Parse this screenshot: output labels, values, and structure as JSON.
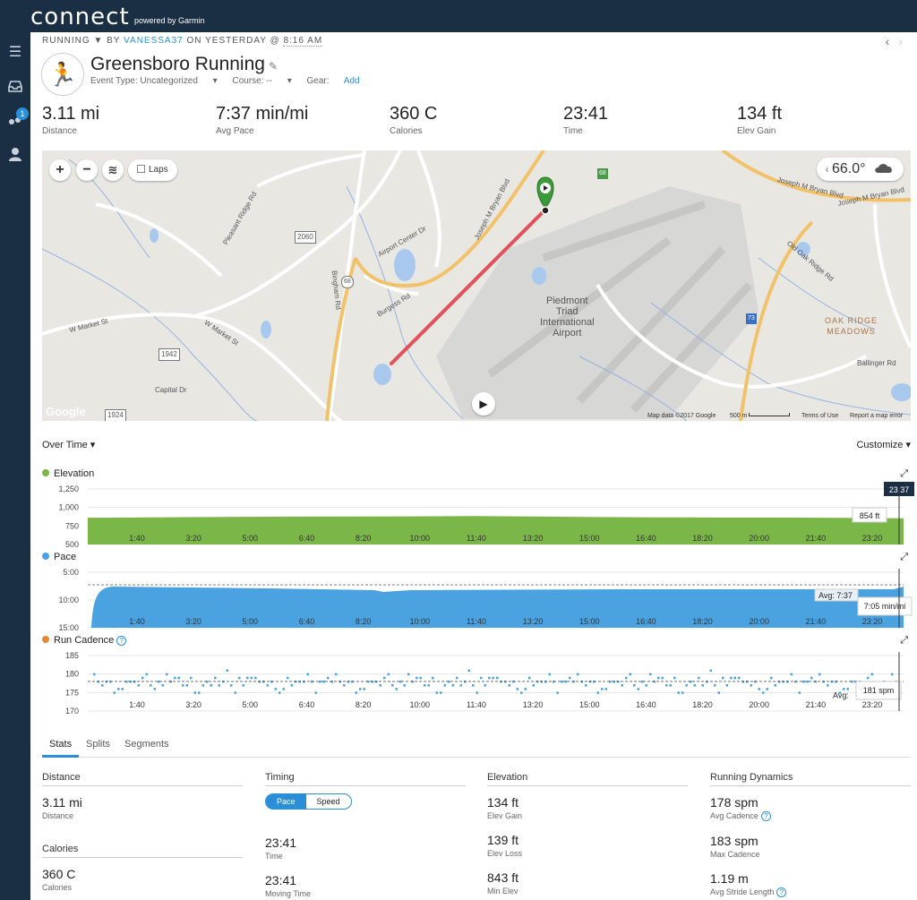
{
  "app": {
    "logo": "connect",
    "logo_sub": "powered by Garmin"
  },
  "sidebar": {
    "notification_count": "1"
  },
  "breadcrumb": {
    "activity_type": "RUNNING",
    "by": "BY",
    "user": "VANESSA37",
    "on": "ON YESTERDAY @",
    "time": "8:16 AM"
  },
  "activity": {
    "title": "Greensboro Running",
    "event_type": "Event Type: Uncategorized",
    "course": "Course: --",
    "gear_label": "Gear:",
    "gear_add": "Add"
  },
  "summary": [
    {
      "value": "3.11 mi",
      "label": "Distance"
    },
    {
      "value": "7:37 min/mi",
      "label": "Avg Pace"
    },
    {
      "value": "360 C",
      "label": "Calories"
    },
    {
      "value": "23:41",
      "label": "Time"
    },
    {
      "value": "134 ft",
      "label": "Elev Gain"
    }
  ],
  "map": {
    "zoom_in": "+",
    "zoom_out": "−",
    "laps": "Laps",
    "temperature": "66.0°",
    "labels": {
      "airport": "Piedmont\nTriad\nInternational\nAirport",
      "oak_ridge": "OAK RIDGE\nMEADOWS",
      "joseph1": "Joseph M Bryan Blvd",
      "joseph2": "Joseph M Bryan Blvd",
      "joseph3": "Joseph M Bryan Blvd",
      "w_market": "W Market St",
      "w_market2": "W Market St",
      "burgess": "Burgess Rd",
      "pleasant": "Pleasant Ridge Rd",
      "capital": "Capital Dr",
      "old_oak": "Old Oak Ridge Rd",
      "ballinger": "Ballinger Rd",
      "bingham": "Bingham Rd",
      "airport_center": "Airport Center Dr",
      "r2060": "2060",
      "r1942": "1942",
      "r1924": "1924",
      "r68": "68",
      "r68b": "68",
      "r73": "73"
    },
    "attribution": "Map data ©2017 Google",
    "scale": "500 m",
    "terms": "Terms of Use",
    "report": "Report a map error",
    "google": "Google"
  },
  "charts_header": {
    "over_time": "Over Time",
    "customize": "Customize"
  },
  "chart_data": [
    {
      "type": "area",
      "title": "Elevation",
      "x": [
        "1:40",
        "3:20",
        "5:00",
        "6:40",
        "8:20",
        "10:00",
        "11:40",
        "13:20",
        "15:00",
        "16:40",
        "18:20",
        "20:00",
        "21:40",
        "23:20"
      ],
      "yticks": [
        "1,250",
        "1,000",
        "750",
        "500"
      ],
      "ylim": [
        500,
        1250
      ],
      "values": [
        862,
        868,
        872,
        876,
        878,
        880,
        884,
        878,
        870,
        866,
        864,
        864,
        860,
        854
      ],
      "tooltip": "854 ft",
      "cursor_time": "23:37",
      "color": "#7ab648"
    },
    {
      "type": "area",
      "title": "Pace",
      "x": [
        "1:40",
        "3:20",
        "5:00",
        "6:40",
        "8:20",
        "10:00",
        "11:40",
        "13:20",
        "15:00",
        "16:40",
        "18:20",
        "20:00",
        "21:40",
        "23:20"
      ],
      "yticks": [
        "5:00",
        "10:00",
        "15:00"
      ],
      "avg_label": "Avg: 7:37",
      "tooltip": "7:05 min/mi",
      "color": "#4aa3e0"
    },
    {
      "type": "scatter",
      "title": "Run Cadence",
      "x": [
        "1:40",
        "3:20",
        "5:00",
        "6:40",
        "8:20",
        "10:00",
        "11:40",
        "13:20",
        "15:00",
        "16:40",
        "18:20",
        "20:00",
        "21:40",
        "23:20"
      ],
      "yticks": [
        "185",
        "180",
        "175",
        "170"
      ],
      "ylim": [
        170,
        185
      ],
      "avg_label": "Avg:",
      "tooltip": "181 spm",
      "color": "#4aa3e0"
    }
  ],
  "tabs": [
    "Stats",
    "Splits",
    "Segments"
  ],
  "stats": {
    "distance": {
      "head": "Distance",
      "items": [
        {
          "value": "3.11 mi",
          "label": "Distance"
        }
      ]
    },
    "calories": {
      "head": "Calories",
      "items": [
        {
          "value": "360 C",
          "label": "Calories"
        }
      ]
    },
    "timing": {
      "head": "Timing",
      "toggle_on": "Pace",
      "toggle_off": "Speed",
      "items": [
        {
          "value": "23:41",
          "label": "Time"
        },
        {
          "value": "23:41",
          "label": "Moving Time"
        }
      ]
    },
    "elevation": {
      "head": "Elevation",
      "items": [
        {
          "value": "134 ft",
          "label": "Elev Gain"
        },
        {
          "value": "139 ft",
          "label": "Elev Loss"
        },
        {
          "value": "843 ft",
          "label": "Min Elev"
        }
      ]
    },
    "dynamics": {
      "head": "Running Dynamics",
      "items": [
        {
          "value": "178 spm",
          "label": "Avg Cadence"
        },
        {
          "value": "183 spm",
          "label": "Max Cadence"
        },
        {
          "value": "1.19 m",
          "label": "Avg Stride Length"
        }
      ]
    }
  }
}
